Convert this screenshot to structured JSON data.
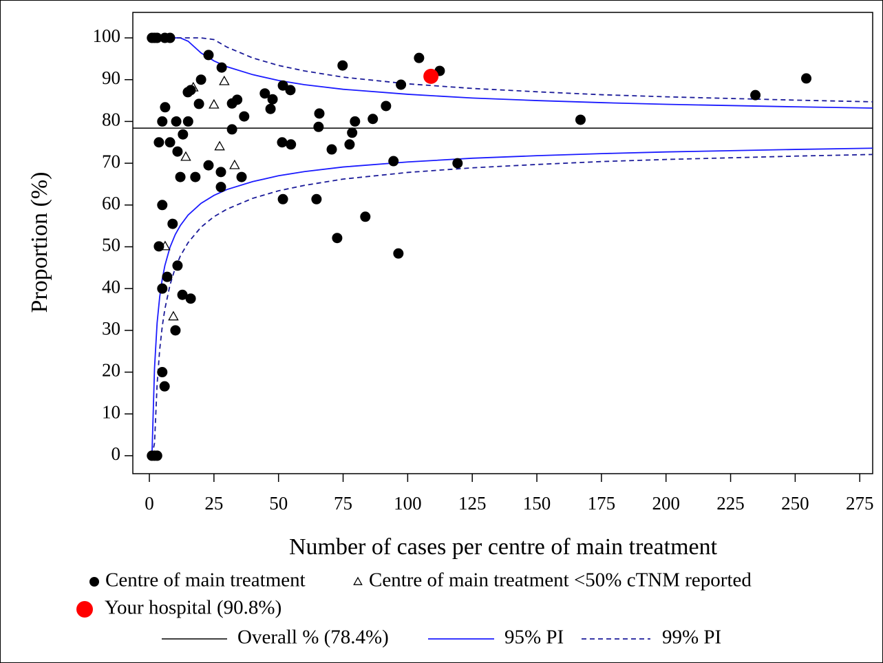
{
  "chart_data": {
    "type": "scatter",
    "x_label": "Number of cases per centre of main treatment",
    "y_label": "Proportion (%)",
    "xlim": [
      -6.4,
      280
    ],
    "ylim": [
      -4.3,
      106.1
    ],
    "xticks": [
      0,
      25,
      50,
      75,
      100,
      125,
      150,
      175,
      200,
      225,
      250,
      275
    ],
    "yticks": [
      0,
      10,
      20,
      30,
      40,
      50,
      60,
      70,
      80,
      90,
      100
    ],
    "series": [
      {
        "name": "Centre of main treatment",
        "marker": "circle",
        "color": "#000000",
        "x": [
          1,
          2,
          3,
          6,
          8,
          22.9,
          28,
          20,
          14.9,
          16,
          34,
          32,
          19.2,
          6.1,
          36.7,
          5,
          10.4,
          15,
          32,
          3.7,
          8,
          10.9,
          13,
          12,
          17.8,
          22.9,
          27.7,
          27.7,
          35.7,
          5,
          9,
          3.7,
          10.9,
          6.9,
          5,
          12.8,
          16,
          10.1,
          5,
          5.9,
          1,
          2,
          3,
          44.7,
          47.7,
          46.9,
          51.7,
          54.6,
          51.4,
          54.8,
          51.7,
          65.8,
          65.5,
          64.7,
          74.8,
          70.6,
          77.5,
          78.5,
          79.6,
          72.7,
          83.6,
          86.5,
          91.6,
          94.5,
          96.4,
          97.4,
          104.4,
          112.4,
          119.3,
          166.9,
          234.6,
          254.3
        ],
        "values": [
          100,
          100,
          100,
          100,
          100,
          95.9,
          92.9,
          90,
          87,
          87.5,
          85.2,
          84.3,
          84.2,
          83.4,
          81.2,
          80,
          80,
          80,
          78.1,
          75,
          75,
          72.8,
          76.9,
          66.7,
          66.7,
          69.5,
          67.9,
          64.3,
          66.7,
          60,
          55.5,
          50.1,
          45.5,
          42.8,
          40,
          38.5,
          37.6,
          30,
          20,
          16.6,
          0,
          0,
          0,
          86.7,
          85.3,
          83,
          88.6,
          87.5,
          75,
          74.5,
          61.4,
          81.9,
          78.7,
          61.4,
          93.4,
          73.3,
          74.5,
          77.3,
          80,
          52.1,
          57.2,
          80.6,
          83.7,
          70.5,
          48.4,
          88.8,
          95.2,
          92.1,
          70,
          80.4,
          86.3,
          90.3
        ]
      },
      {
        "name": "Centre of main treatment <50% cTNM reported",
        "marker": "triangle",
        "color": "#000000",
        "x": [
          17,
          29,
          25,
          27.2,
          14.1,
          33,
          6.1,
          9.3
        ],
        "values": [
          88.1,
          89.6,
          84,
          74,
          71.5,
          69.5,
          50.1,
          33.3
        ]
      },
      {
        "name": "Your hospital (90.8%)",
        "marker": "circle",
        "color": "#ff0000",
        "x": [
          109
        ],
        "values": [
          90.8
        ]
      }
    ],
    "overall": {
      "name": "Overall % (78.4%)",
      "value": 78.4,
      "color": "#000000"
    },
    "limits": [
      {
        "name": "95% PI",
        "color": "#1a1aff",
        "dashed": false,
        "x": [
          1,
          2,
          3,
          4,
          5,
          6,
          8,
          10,
          12,
          15,
          20,
          25,
          30,
          40,
          50,
          60,
          75,
          100,
          125,
          150,
          175,
          200,
          225,
          250,
          280
        ],
        "upper": [
          100,
          100,
          100,
          100,
          100,
          100,
          100,
          100,
          100,
          99.2,
          96.4,
          94.5,
          93.1,
          91.2,
          89.8,
          88.8,
          87.7,
          86.5,
          85.6,
          85.0,
          84.5,
          84.1,
          83.8,
          83.5,
          83.2
        ],
        "lower": [
          0,
          21,
          31.8,
          38.0,
          42.3,
          45.5,
          49.9,
          52.9,
          55.1,
          57.6,
          60.4,
          62.3,
          63.7,
          65.6,
          67.0,
          68.0,
          69.1,
          70.3,
          71.2,
          71.8,
          72.3,
          72.7,
          73.0,
          73.3,
          73.6
        ]
      },
      {
        "name": "99% PI",
        "color": "#1a1a99",
        "dashed": true,
        "x": [
          1,
          2,
          3,
          4,
          5,
          6,
          8,
          10,
          12,
          15,
          20,
          25,
          30,
          40,
          50,
          60,
          75,
          100,
          125,
          150,
          175,
          200,
          225,
          250,
          280
        ],
        "upper": [
          100,
          100,
          100,
          100,
          100,
          100,
          100,
          100,
          100,
          100,
          100,
          99.6,
          97.8,
          95.2,
          93.4,
          92.1,
          90.6,
          89.0,
          87.9,
          87.1,
          86.4,
          85.9,
          85.5,
          85.1,
          84.7
        ],
        "lower": [
          0,
          3,
          17.1,
          25.4,
          31.0,
          35.1,
          40.9,
          44.9,
          47.8,
          51.0,
          54.7,
          57.2,
          59.0,
          61.6,
          63.4,
          64.7,
          66.2,
          67.8,
          68.9,
          69.7,
          70.4,
          70.9,
          71.3,
          71.7,
          72.1
        ]
      }
    ]
  }
}
